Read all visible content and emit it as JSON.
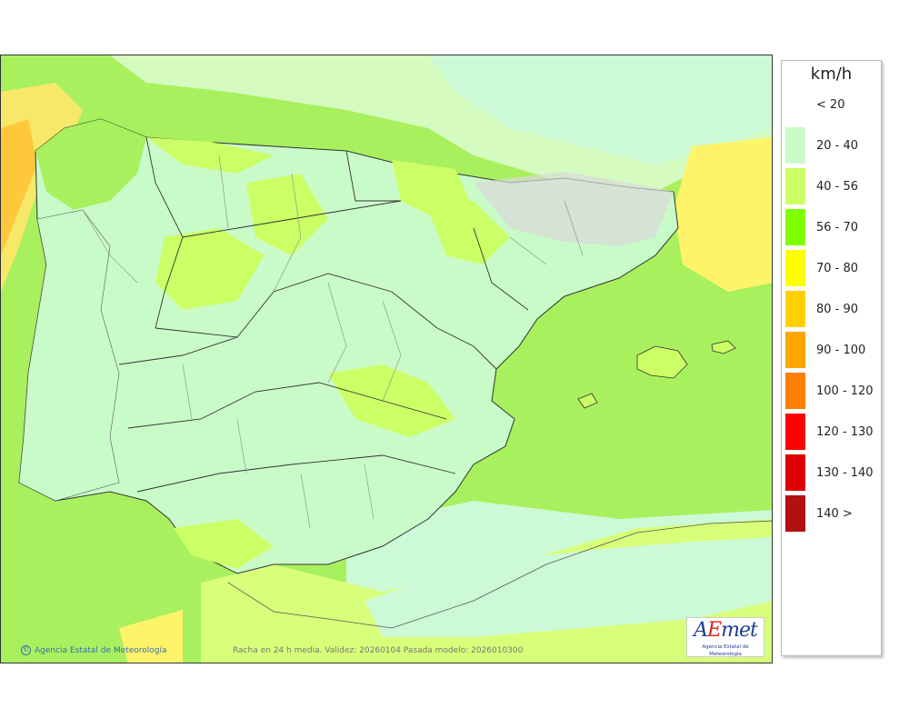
{
  "legend": {
    "title": "km/h",
    "items": [
      {
        "label": "< 20",
        "color": "#ffffff"
      },
      {
        "label": "20 - 40",
        "color": "#c9fbc9"
      },
      {
        "label": "40 - 56",
        "color": "#ccff66"
      },
      {
        "label": "56 - 70",
        "color": "#80ff00"
      },
      {
        "label": "70 - 80",
        "color": "#ffff00"
      },
      {
        "label": "80 - 90",
        "color": "#ffd000"
      },
      {
        "label": "90 - 100",
        "color": "#ffa500"
      },
      {
        "label": "100 - 120",
        "color": "#ff7f00"
      },
      {
        "label": "120 - 130",
        "color": "#ff0000"
      },
      {
        "label": "130 - 140",
        "color": "#dd0000"
      },
      {
        "label": "140 >",
        "color": "#b01010"
      }
    ]
  },
  "map": {
    "credit": "Agencia Estatal de Meteorología",
    "caption": "Racha en 24 h media. Validez: 20260104 Pasada modelo: 2026010300",
    "logo_text": "AEmet",
    "logo_subtitle": "Agencia Estatal de Meteorología"
  }
}
